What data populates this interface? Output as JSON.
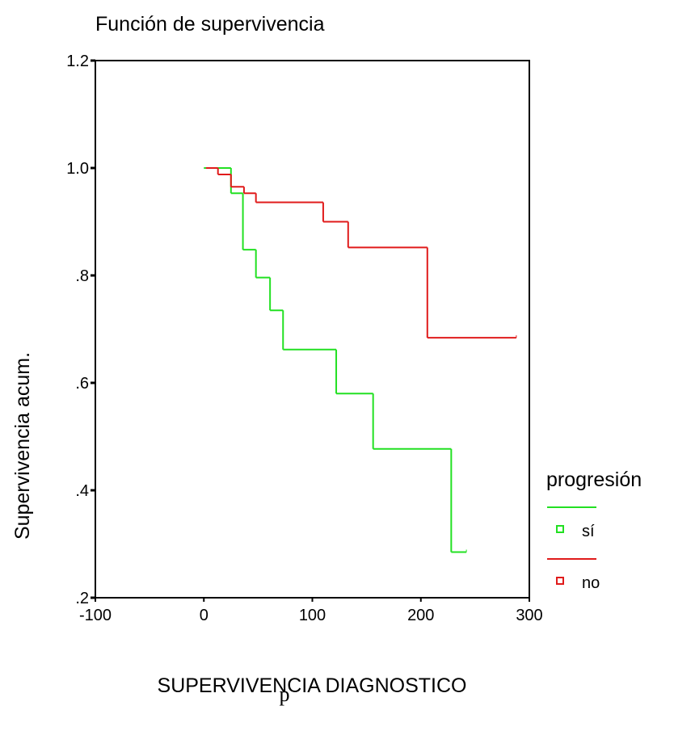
{
  "chart_data": {
    "type": "step",
    "title": "Función de supervivencia",
    "x_label": "SUPERVIVENCIA DIAGNOSTICO",
    "y_label": "Supervivencia acum.",
    "footnote": "p",
    "legend_title": "progresión",
    "legend_position": "right",
    "xlim": [
      -100,
      300
    ],
    "xticks": [
      -100,
      0,
      100,
      200,
      300
    ],
    "ylim": [
      0.2,
      1.2
    ],
    "yticks": [
      {
        "value": 0.2,
        "label": ".2"
      },
      {
        "value": 0.4,
        "label": ".4"
      },
      {
        "value": 0.6,
        "label": ".6"
      },
      {
        "value": 0.8,
        "label": ".8"
      },
      {
        "value": 1,
        "label": "1.0"
      },
      1.2
    ],
    "series": [
      {
        "name": "sí",
        "color": "#22e022",
        "x": [
          0,
          25,
          36,
          48,
          61,
          73,
          122,
          156,
          228,
          242
        ],
        "values": [
          1.0,
          0.953,
          0.848,
          0.796,
          0.735,
          0.662,
          0.58,
          0.477,
          0.285,
          0.285
        ]
      },
      {
        "name": "no",
        "color": "#e01b1b",
        "x": [
          2,
          13,
          25,
          37,
          48,
          110,
          133,
          206,
          288
        ],
        "values": [
          1.0,
          0.988,
          0.965,
          0.953,
          0.936,
          0.9,
          0.852,
          0.684,
          0.684
        ]
      }
    ]
  }
}
